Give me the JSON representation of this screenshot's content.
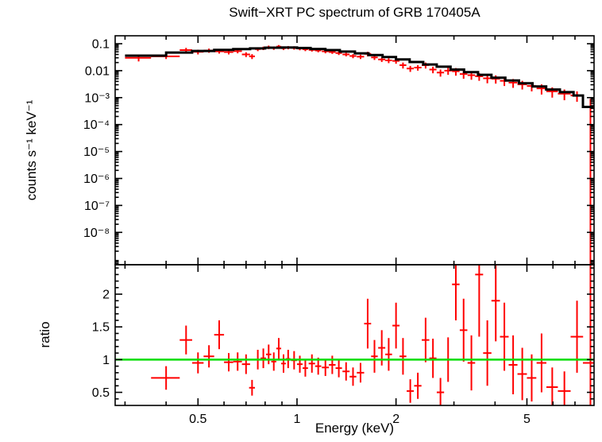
{
  "colors": {
    "data": "#ff0000",
    "model": "#000000",
    "reference": "#00dd00",
    "axis": "#000000",
    "background": "#ffffff"
  },
  "chart_data": {
    "type": "scatter",
    "title": "Swift−XRT PC spectrum of GRB 170405A",
    "xlabel": "Energy (keV)",
    "xscale": "log",
    "xlim": [
      0.28,
      8.0
    ],
    "xticks": [
      {
        "v": 0.5,
        "label": "0.5"
      },
      {
        "v": 1,
        "label": "1"
      },
      {
        "v": 2,
        "label": "2"
      },
      {
        "v": 5,
        "label": "5"
      }
    ],
    "xminor": [
      0.3,
      0.4,
      0.6,
      0.7,
      0.8,
      0.9,
      3,
      4,
      6,
      7
    ],
    "panels": [
      {
        "name": "spectrum",
        "ylabel": "counts s⁻¹ keV⁻¹",
        "yscale": "log",
        "ylim": [
          6.3e-10,
          0.197
        ],
        "yticks": [
          {
            "v": 0.1,
            "label": "0.1"
          },
          {
            "v": 0.01,
            "label": "0.01"
          },
          {
            "v": 0.001,
            "label": "10⁻³"
          },
          {
            "v": 0.0001,
            "label": "10⁻⁴"
          },
          {
            "v": 1e-05,
            "label": "10⁻⁵"
          },
          {
            "v": 1e-06,
            "label": "10⁻⁶"
          },
          {
            "v": 1e-07,
            "label": "10⁻⁷"
          },
          {
            "v": 1e-08,
            "label": "10⁻⁸"
          }
        ],
        "points_format": [
          "energy_keV",
          "energy_err",
          "counts",
          "counts_err"
        ],
        "points": [
          [
            0.33,
            0.03,
            0.03,
            0.008
          ],
          [
            0.4,
            0.04,
            0.034,
            0.007
          ],
          [
            0.46,
            0.02,
            0.058,
            0.012
          ],
          [
            0.5,
            0.02,
            0.05,
            0.01
          ],
          [
            0.54,
            0.02,
            0.056,
            0.01
          ],
          [
            0.58,
            0.02,
            0.052,
            0.009
          ],
          [
            0.62,
            0.02,
            0.049,
            0.009
          ],
          [
            0.66,
            0.02,
            0.053,
            0.009
          ],
          [
            0.7,
            0.02,
            0.04,
            0.008
          ],
          [
            0.73,
            0.015,
            0.034,
            0.007
          ],
          [
            0.76,
            0.015,
            0.063,
            0.01
          ],
          [
            0.79,
            0.015,
            0.068,
            0.01
          ],
          [
            0.82,
            0.015,
            0.074,
            0.011
          ],
          [
            0.85,
            0.015,
            0.069,
            0.01
          ],
          [
            0.88,
            0.015,
            0.078,
            0.011
          ],
          [
            0.91,
            0.015,
            0.068,
            0.01
          ],
          [
            0.94,
            0.015,
            0.072,
            0.01
          ],
          [
            0.98,
            0.02,
            0.07,
            0.01
          ],
          [
            1.02,
            0.02,
            0.066,
            0.009
          ],
          [
            1.06,
            0.02,
            0.062,
            0.009
          ],
          [
            1.11,
            0.025,
            0.059,
            0.008
          ],
          [
            1.16,
            0.025,
            0.056,
            0.008
          ],
          [
            1.22,
            0.03,
            0.052,
            0.008
          ],
          [
            1.28,
            0.03,
            0.049,
            0.007
          ],
          [
            1.34,
            0.03,
            0.045,
            0.007
          ],
          [
            1.41,
            0.035,
            0.04,
            0.006
          ],
          [
            1.48,
            0.035,
            0.035,
            0.006
          ],
          [
            1.56,
            0.04,
            0.033,
            0.006
          ],
          [
            1.64,
            0.04,
            0.042,
            0.008
          ],
          [
            1.72,
            0.04,
            0.031,
            0.006
          ],
          [
            1.81,
            0.045,
            0.026,
            0.005
          ],
          [
            1.9,
            0.045,
            0.024,
            0.005
          ],
          [
            2.0,
            0.05,
            0.023,
            0.005
          ],
          [
            2.1,
            0.05,
            0.016,
            0.004
          ],
          [
            2.21,
            0.055,
            0.012,
            0.003
          ],
          [
            2.33,
            0.06,
            0.013,
            0.003
          ],
          [
            2.46,
            0.065,
            0.016,
            0.004
          ],
          [
            2.59,
            0.065,
            0.011,
            0.003
          ],
          [
            2.73,
            0.07,
            0.0085,
            0.0025
          ],
          [
            2.88,
            0.075,
            0.01,
            0.003
          ],
          [
            3.04,
            0.08,
            0.0095,
            0.003
          ],
          [
            3.21,
            0.085,
            0.0075,
            0.0025
          ],
          [
            3.39,
            0.09,
            0.0068,
            0.0022
          ],
          [
            3.58,
            0.1,
            0.0062,
            0.002
          ],
          [
            3.79,
            0.11,
            0.0052,
            0.0018
          ],
          [
            4.02,
            0.12,
            0.005,
            0.0017
          ],
          [
            4.27,
            0.13,
            0.0042,
            0.0015
          ],
          [
            4.54,
            0.14,
            0.0036,
            0.0013
          ],
          [
            4.84,
            0.16,
            0.0031,
            0.0011
          ],
          [
            5.17,
            0.17,
            0.0027,
            0.001
          ],
          [
            5.54,
            0.19,
            0.0022,
            0.0009
          ],
          [
            5.97,
            0.24,
            0.0017,
            0.0007
          ],
          [
            6.5,
            0.29,
            0.0014,
            0.0006
          ],
          [
            7.1,
            0.31,
            0.0012,
            0.0005
          ],
          [
            7.8,
            0.4,
            0.00045,
            0.00045
          ]
        ],
        "model_bins_format": [
          "e_lo",
          "e_hi",
          "model_counts"
        ],
        "model_bins": [
          [
            0.3,
            0.4,
            0.036
          ],
          [
            0.4,
            0.48,
            0.047
          ],
          [
            0.48,
            0.56,
            0.054
          ],
          [
            0.56,
            0.64,
            0.059
          ],
          [
            0.64,
            0.72,
            0.063
          ],
          [
            0.72,
            0.8,
            0.067
          ],
          [
            0.8,
            0.9,
            0.071
          ],
          [
            0.9,
            1.0,
            0.072
          ],
          [
            1.0,
            1.1,
            0.069
          ],
          [
            1.1,
            1.22,
            0.064
          ],
          [
            1.22,
            1.35,
            0.058
          ],
          [
            1.35,
            1.5,
            0.051
          ],
          [
            1.5,
            1.65,
            0.044
          ],
          [
            1.65,
            1.82,
            0.038
          ],
          [
            1.82,
            2.0,
            0.032
          ],
          [
            2.0,
            2.2,
            0.026
          ],
          [
            2.2,
            2.42,
            0.021
          ],
          [
            2.42,
            2.66,
            0.017
          ],
          [
            2.66,
            2.93,
            0.014
          ],
          [
            2.93,
            3.22,
            0.011
          ],
          [
            3.22,
            3.55,
            0.0088
          ],
          [
            3.55,
            3.9,
            0.007
          ],
          [
            3.9,
            4.3,
            0.0055
          ],
          [
            4.3,
            4.73,
            0.0043
          ],
          [
            4.73,
            5.2,
            0.0034
          ],
          [
            5.2,
            5.72,
            0.0026
          ],
          [
            5.72,
            6.3,
            0.002
          ],
          [
            6.3,
            6.93,
            0.0016
          ],
          [
            6.93,
            7.4,
            0.0012
          ],
          [
            7.4,
            8.0,
            0.00045
          ]
        ]
      },
      {
        "name": "ratio",
        "ylabel": "ratio",
        "yscale": "linear",
        "ylim": [
          0.3,
          2.45
        ],
        "reference_line": 1,
        "yticks": [
          {
            "v": 0.5,
            "label": "0.5"
          },
          {
            "v": 1,
            "label": "1"
          },
          {
            "v": 1.5,
            "label": "1.5"
          },
          {
            "v": 2,
            "label": "2"
          }
        ],
        "points_format": [
          "energy_keV",
          "energy_err",
          "ratio",
          "ratio_err"
        ],
        "points": [
          [
            0.4,
            0.04,
            0.72,
            0.18
          ],
          [
            0.46,
            0.02,
            1.3,
            0.22
          ],
          [
            0.5,
            0.02,
            0.95,
            0.16
          ],
          [
            0.54,
            0.02,
            1.05,
            0.17
          ],
          [
            0.58,
            0.02,
            1.38,
            0.22
          ],
          [
            0.62,
            0.02,
            0.96,
            0.14
          ],
          [
            0.66,
            0.02,
            0.97,
            0.14
          ],
          [
            0.7,
            0.02,
            0.93,
            0.15
          ],
          [
            0.73,
            0.015,
            0.57,
            0.12
          ],
          [
            0.76,
            0.015,
            1.0,
            0.15
          ],
          [
            0.79,
            0.015,
            1.02,
            0.15
          ],
          [
            0.82,
            0.015,
            1.08,
            0.15
          ],
          [
            0.85,
            0.015,
            0.97,
            0.14
          ],
          [
            0.88,
            0.015,
            1.17,
            0.16
          ],
          [
            0.91,
            0.015,
            0.94,
            0.14
          ],
          [
            0.94,
            0.015,
            1.01,
            0.14
          ],
          [
            0.98,
            0.02,
            0.99,
            0.14
          ],
          [
            1.02,
            0.02,
            0.93,
            0.13
          ],
          [
            1.06,
            0.02,
            0.87,
            0.13
          ],
          [
            1.11,
            0.025,
            0.94,
            0.14
          ],
          [
            1.16,
            0.025,
            0.9,
            0.13
          ],
          [
            1.22,
            0.03,
            0.88,
            0.13
          ],
          [
            1.28,
            0.03,
            0.92,
            0.14
          ],
          [
            1.34,
            0.03,
            0.87,
            0.14
          ],
          [
            1.41,
            0.035,
            0.82,
            0.14
          ],
          [
            1.48,
            0.035,
            0.74,
            0.14
          ],
          [
            1.56,
            0.04,
            0.8,
            0.15
          ],
          [
            1.64,
            0.04,
            1.55,
            0.38
          ],
          [
            1.72,
            0.04,
            1.05,
            0.25
          ],
          [
            1.81,
            0.045,
            1.18,
            0.27
          ],
          [
            1.9,
            0.045,
            1.08,
            0.25
          ],
          [
            2.0,
            0.05,
            1.52,
            0.35
          ],
          [
            2.1,
            0.05,
            1.05,
            0.28
          ],
          [
            2.21,
            0.055,
            0.52,
            0.18
          ],
          [
            2.33,
            0.06,
            0.6,
            0.2
          ],
          [
            2.46,
            0.065,
            1.3,
            0.34
          ],
          [
            2.59,
            0.065,
            1.02,
            0.3
          ],
          [
            2.73,
            0.07,
            0.5,
            0.22
          ],
          [
            2.88,
            0.075,
            1.0,
            0.34
          ],
          [
            3.04,
            0.08,
            2.15,
            0.55
          ],
          [
            3.21,
            0.085,
            1.45,
            0.48
          ],
          [
            3.39,
            0.09,
            0.95,
            0.42
          ],
          [
            3.58,
            0.1,
            2.3,
            0.95
          ],
          [
            3.79,
            0.11,
            1.1,
            0.5
          ],
          [
            4.02,
            0.12,
            1.9,
            0.62
          ],
          [
            4.27,
            0.13,
            1.35,
            0.52
          ],
          [
            4.54,
            0.14,
            0.92,
            0.45
          ],
          [
            4.84,
            0.16,
            0.78,
            0.4
          ],
          [
            5.17,
            0.17,
            0.72,
            0.36
          ],
          [
            5.54,
            0.19,
            0.95,
            0.45
          ],
          [
            5.97,
            0.24,
            0.58,
            0.3
          ],
          [
            6.5,
            0.29,
            0.52,
            0.3
          ],
          [
            7.1,
            0.31,
            1.35,
            0.55
          ],
          [
            7.8,
            0.4,
            0.95,
            1.6
          ]
        ]
      }
    ]
  }
}
